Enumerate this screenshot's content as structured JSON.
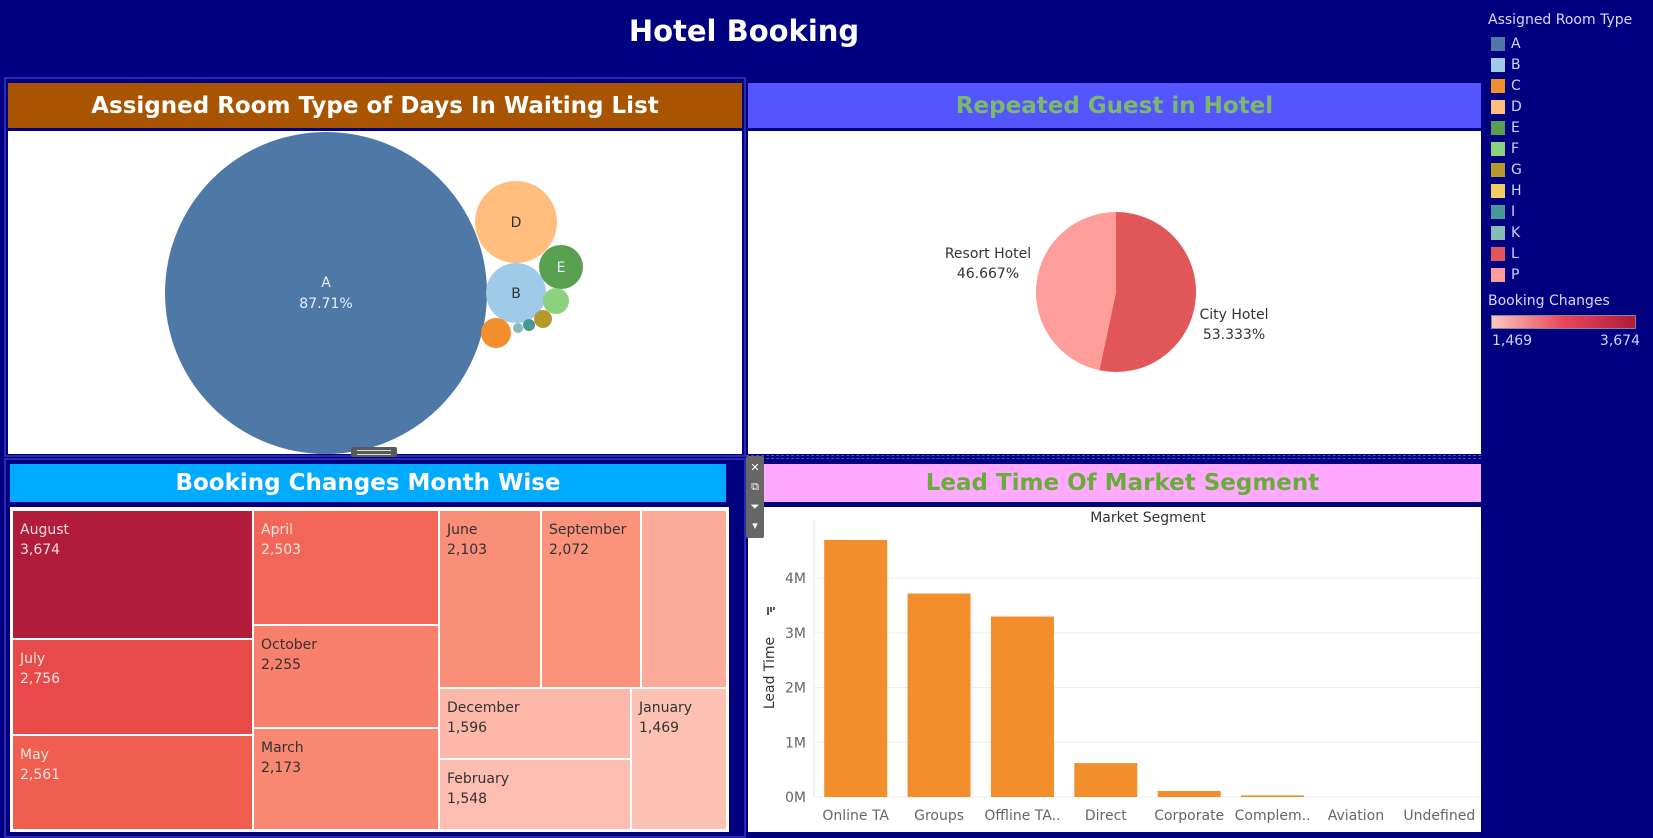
{
  "dashboard": {
    "title": "Hotel Booking"
  },
  "panels": {
    "room_type": {
      "title": "Assigned Room Type of Days In Waiting List"
    },
    "repeated_guest": {
      "title": "Repeated Guest in Hotel"
    },
    "booking_changes": {
      "title": "Booking Changes Month Wise"
    },
    "lead_time": {
      "title": "Lead Time Of Market Segment"
    }
  },
  "legend": {
    "title": "Assigned Room Type",
    "items": [
      {
        "label": "A",
        "color": "#4e79a7"
      },
      {
        "label": "B",
        "color": "#a0cbe8"
      },
      {
        "label": "C",
        "color": "#f28e2b"
      },
      {
        "label": "D",
        "color": "#ffbe7d"
      },
      {
        "label": "E",
        "color": "#59a14f"
      },
      {
        "label": "F",
        "color": "#8cd17d"
      },
      {
        "label": "G",
        "color": "#b6992d"
      },
      {
        "label": "H",
        "color": "#f1ce63"
      },
      {
        "label": "I",
        "color": "#499894"
      },
      {
        "label": "K",
        "color": "#86bcb6"
      },
      {
        "label": "L",
        "color": "#e15759"
      },
      {
        "label": "P",
        "color": "#ff9d9a"
      }
    ],
    "booking_changes": {
      "title": "Booking Changes",
      "min": "1,469",
      "max": "3,674"
    }
  },
  "chart_data": [
    {
      "type": "bubble",
      "bubbles": [
        {
          "label": "A",
          "text": "87.71%",
          "share": 87.71,
          "color": "#4e79a7"
        },
        {
          "label": "D",
          "color": "#ffbe7d"
        },
        {
          "label": "B",
          "color": "#a0cbe8"
        },
        {
          "label": "E",
          "color": "#59a14f"
        },
        {
          "label": "F",
          "color": "#8cd17d"
        },
        {
          "label": "C",
          "color": "#f28e2b"
        },
        {
          "label": "G",
          "color": "#b6992d"
        },
        {
          "label": "I",
          "color": "#499894"
        },
        {
          "label": "K",
          "color": "#86bcb6"
        }
      ]
    },
    {
      "type": "pie",
      "slices": [
        {
          "label": "City Hotel",
          "value": 53.333,
          "text": "53.333%",
          "color": "#e15759"
        },
        {
          "label": "Resort Hotel",
          "value": 46.667,
          "text": "46.667%",
          "color": "#ff9d9a"
        }
      ]
    },
    {
      "type": "treemap",
      "cells": [
        {
          "label": "August",
          "value": 3674,
          "text": "3,674",
          "color": "#b01c3a",
          "fg": "#f4dde2"
        },
        {
          "label": "July",
          "value": 2756,
          "text": "2,756",
          "color": "#e84a4a",
          "fg": "#fde4e0"
        },
        {
          "label": "May",
          "value": 2561,
          "text": "2,561",
          "color": "#f05e50",
          "fg": "#fde4e0"
        },
        {
          "label": "April",
          "value": 2503,
          "text": "2,503",
          "color": "#f2665a",
          "fg": "#fde4e0"
        },
        {
          "label": "October",
          "value": 2255,
          "text": "2,255",
          "color": "#f77f6c",
          "fg": "#333333"
        },
        {
          "label": "March",
          "value": 2173,
          "text": "2,173",
          "color": "#f88872",
          "fg": "#333333"
        },
        {
          "label": "June",
          "value": 2103,
          "text": "2,103",
          "color": "#f98e79",
          "fg": "#333333"
        },
        {
          "label": "September",
          "value": 2072,
          "text": "2,072",
          "color": "#fa927c",
          "fg": "#333333"
        },
        {
          "label": "",
          "value": null,
          "text": "",
          "color": "#fcaa9a",
          "fg": "#333333"
        },
        {
          "label": "December",
          "value": 1596,
          "text": "1,596",
          "color": "#fdb8aa",
          "fg": "#333333"
        },
        {
          "label": "February",
          "value": 1548,
          "text": "1,548",
          "color": "#fdbdb0",
          "fg": "#333333"
        },
        {
          "label": "January",
          "value": 1469,
          "text": "1,469",
          "color": "#fdc2b4",
          "fg": "#333333"
        }
      ]
    },
    {
      "type": "bar",
      "title": "Market Segment",
      "ylabel": "Lead Time",
      "categories": [
        "Online TA",
        "Groups",
        "Offline TA..",
        "Direct",
        "Corporate",
        "Complem..",
        "Aviation",
        "Undefined"
      ],
      "values": [
        4700000,
        3720000,
        3300000,
        620000,
        110000,
        30000,
        0,
        0
      ],
      "yticks": [
        0,
        1000000,
        2000000,
        3000000,
        4000000
      ],
      "ytick_labels": [
        "0M",
        "1M",
        "2M",
        "3M",
        "4M"
      ],
      "ylim": [
        0,
        4900000
      ],
      "color": "#f28e2b"
    }
  ]
}
